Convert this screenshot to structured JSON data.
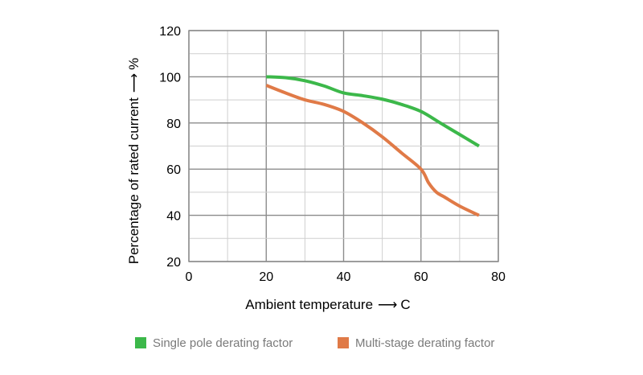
{
  "chart_data": {
    "type": "line",
    "title": "",
    "xlabel": "Ambient temperature",
    "xunit": "C",
    "ylabel": "Percentage of rated current",
    "yunit": "%",
    "xlim": [
      0,
      80
    ],
    "ylim": [
      20,
      120
    ],
    "xticks": [
      0,
      20,
      40,
      60,
      80
    ],
    "yticks": [
      20,
      40,
      60,
      80,
      100,
      120
    ],
    "grid": true,
    "legend_position": "bottom",
    "series": [
      {
        "name": "Single pole derating factor",
        "color": "#3cb84a",
        "points": [
          [
            20,
            100
          ],
          [
            25,
            99.6
          ],
          [
            30,
            98.3
          ],
          [
            35,
            96
          ],
          [
            40,
            93
          ],
          [
            45,
            91.8
          ],
          [
            50,
            90.3
          ],
          [
            55,
            88
          ],
          [
            60,
            85
          ],
          [
            65,
            80
          ],
          [
            70,
            75
          ],
          [
            75,
            70
          ]
        ]
      },
      {
        "name": "Multi-stage derating factor",
        "color": "#e07a47",
        "points": [
          [
            20,
            96.3
          ],
          [
            25,
            93
          ],
          [
            30,
            90
          ],
          [
            35,
            88
          ],
          [
            40,
            85
          ],
          [
            45,
            80
          ],
          [
            50,
            74
          ],
          [
            55,
            67
          ],
          [
            60,
            60
          ],
          [
            62,
            54
          ],
          [
            64,
            50
          ],
          [
            66,
            48
          ],
          [
            70,
            44
          ],
          [
            75,
            40
          ]
        ]
      }
    ]
  }
}
